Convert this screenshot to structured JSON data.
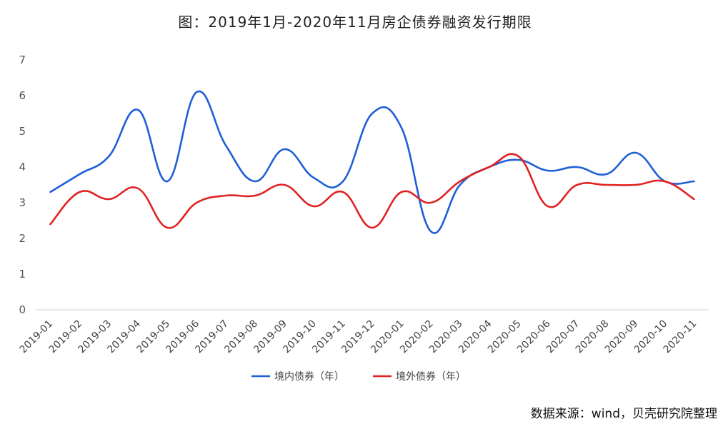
{
  "chart_data": {
    "type": "line",
    "title": "图：2019年1月-2020年11月房企债券融资发行期限",
    "source_note": "数据来源：wind，贝壳研究院整理",
    "x": [
      "2019-01",
      "2019-02",
      "2019-03",
      "2019-04",
      "2019-05",
      "2019-06",
      "2019-07",
      "2019-08",
      "2019-09",
      "2019-10",
      "2019-11",
      "2019-12",
      "2020-01",
      "2020-02",
      "2020-03",
      "2020-04",
      "2020-05",
      "2020-06",
      "2020-07",
      "2020-08",
      "2020-09",
      "2020-10",
      "2020-11"
    ],
    "ylim": [
      0,
      7
    ],
    "yticks": [
      0,
      1,
      2,
      3,
      4,
      5,
      6,
      7
    ],
    "grid": false,
    "legend_position": "bottom",
    "series": [
      {
        "name": "境内债券（年）",
        "color": "#1f5fd6",
        "values": [
          3.3,
          3.8,
          4.3,
          5.6,
          3.6,
          6.1,
          4.6,
          3.6,
          4.5,
          3.7,
          3.6,
          5.5,
          5.1,
          2.2,
          3.5,
          4.0,
          4.2,
          3.9,
          4.0,
          3.8,
          4.4,
          3.6,
          3.6
        ]
      },
      {
        "name": "境外债券（年）",
        "color": "#e02222",
        "values": [
          2.4,
          3.3,
          3.1,
          3.4,
          2.3,
          3.0,
          3.2,
          3.2,
          3.5,
          2.9,
          3.3,
          2.3,
          3.3,
          3.0,
          3.6,
          4.0,
          4.3,
          2.9,
          3.5,
          3.5,
          3.5,
          3.6,
          3.1
        ]
      }
    ]
  }
}
